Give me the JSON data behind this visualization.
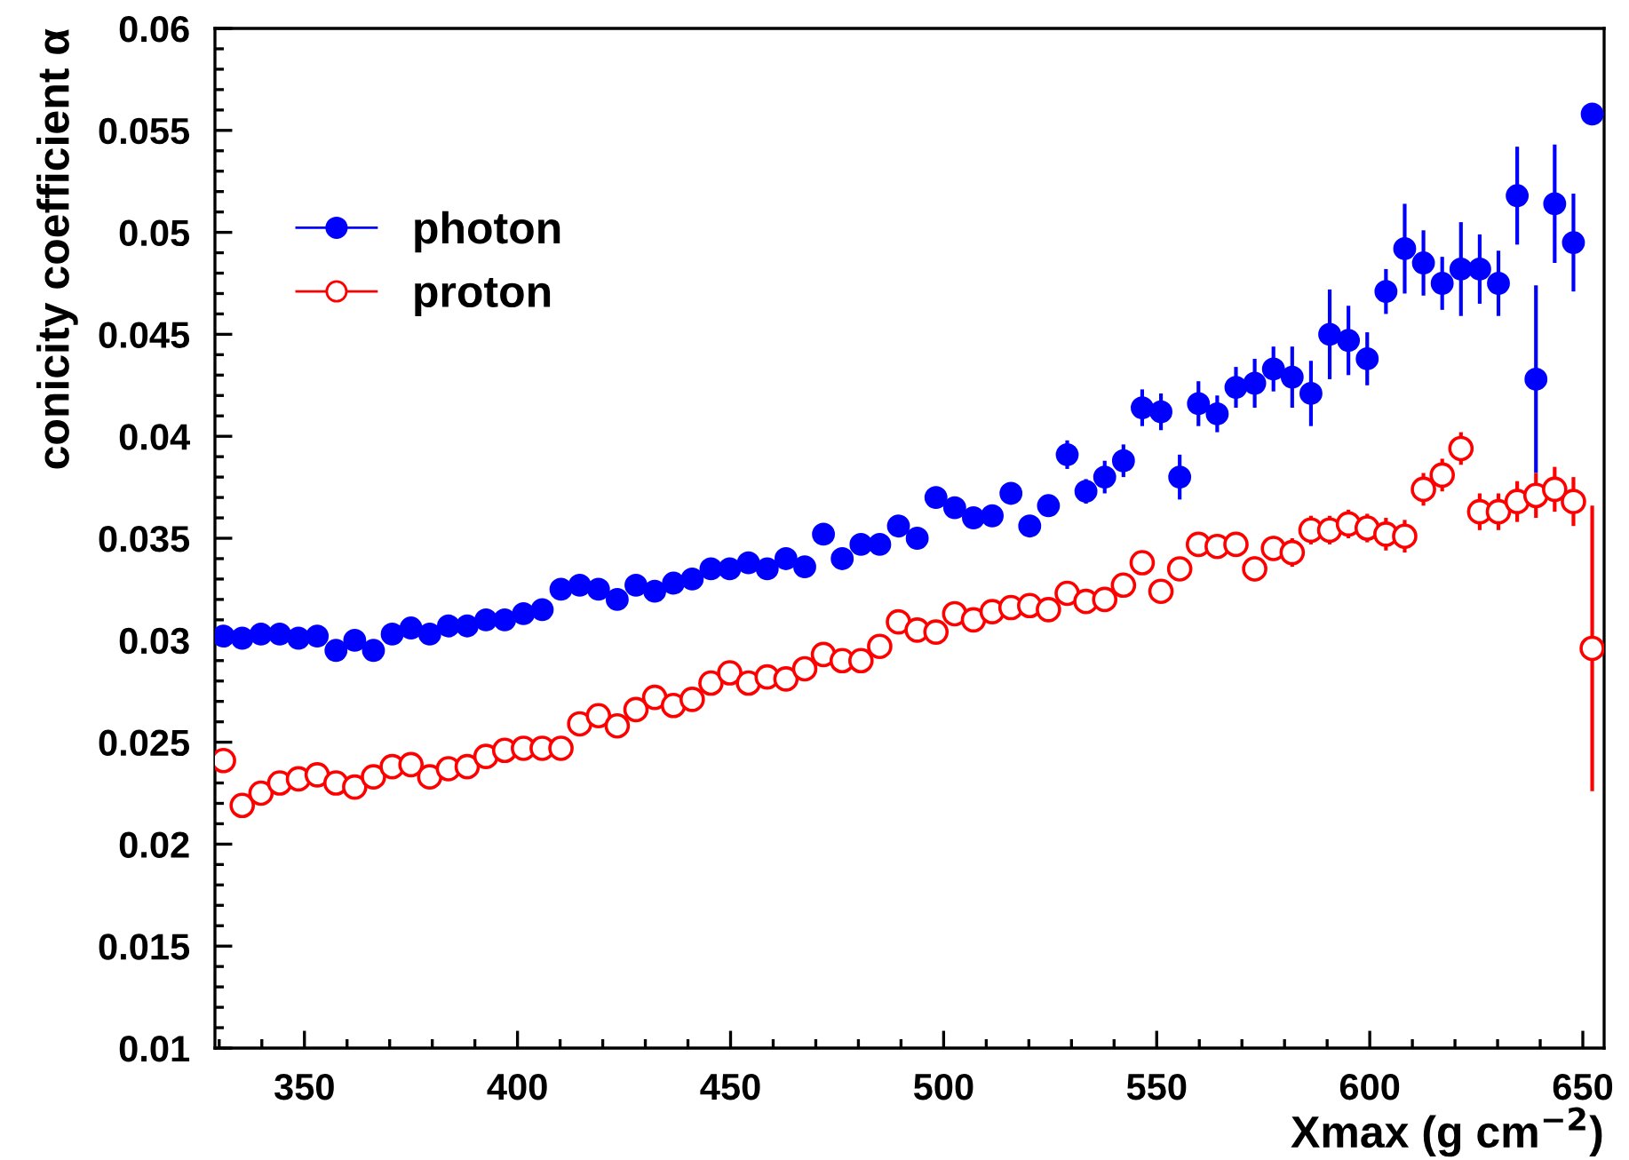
{
  "chart_data": {
    "type": "scatter",
    "xlabel": "Xmax (g cm$^{−2}$)",
    "ylabel": "conicity coefficient α",
    "x": [
      331,
      335.4,
      339.8,
      344.2,
      348.6,
      353,
      357.4,
      361.8,
      366.2,
      370.6,
      375,
      379.4,
      383.8,
      388.2,
      392.6,
      397,
      401.4,
      405.8,
      410.2,
      414.6,
      419,
      423.4,
      427.8,
      432.2,
      436.6,
      441,
      445.4,
      449.8,
      454.2,
      458.6,
      463,
      467.4,
      471.8,
      476.2,
      480.6,
      485,
      489.4,
      493.8,
      498.2,
      502.6,
      507,
      511.4,
      515.8,
      520.2,
      524.6,
      529,
      533.4,
      537.8,
      542.2,
      546.6,
      551,
      555.4,
      559.8,
      564.2,
      568.6,
      573,
      577.4,
      581.8,
      586.2,
      590.6,
      595,
      599.4,
      603.8,
      608.2,
      612.6,
      617,
      621.4,
      625.8,
      630.2,
      634.6,
      639,
      643.4,
      647.8,
      652.2
    ],
    "series": [
      {
        "name": "photon",
        "color": "#0000ff",
        "marker": "circle",
        "values": [
          0.0302,
          0.0301,
          0.0303,
          0.0303,
          0.0301,
          0.0302,
          0.0295,
          0.03,
          0.0295,
          0.0303,
          0.0306,
          0.0303,
          0.0307,
          0.0307,
          0.031,
          0.031,
          0.0313,
          0.0315,
          0.0325,
          0.0327,
          0.0325,
          0.032,
          0.0327,
          0.0324,
          0.0328,
          0.033,
          0.0335,
          0.0335,
          0.0338,
          0.0335,
          0.034,
          0.0336,
          0.0352,
          0.034,
          0.0347,
          0.0347,
          0.0356,
          0.035,
          0.037,
          0.0365,
          0.036,
          0.0361,
          0.0372,
          0.0356,
          0.0366,
          0.0391,
          0.0373,
          0.038,
          0.0388,
          0.0414,
          0.0412,
          0.038,
          0.0416,
          0.0411,
          0.0424,
          0.0426,
          0.0433,
          0.0429,
          0.0421,
          0.045,
          0.0447,
          0.0438,
          0.0471,
          0.0492,
          0.0485,
          0.0475,
          0.0482,
          0.0482,
          0.0475,
          0.0518,
          0.0428,
          0.0514,
          0.0495,
          0.0558
        ],
        "errors": [
          null,
          null,
          null,
          null,
          null,
          null,
          null,
          null,
          null,
          null,
          null,
          null,
          null,
          null,
          null,
          null,
          null,
          null,
          null,
          null,
          null,
          null,
          null,
          null,
          null,
          null,
          null,
          null,
          null,
          null,
          null,
          null,
          null,
          null,
          null,
          null,
          0.0004,
          0.0004,
          0.0004,
          0.0004,
          0.0004,
          0.0005,
          0.0005,
          0.0005,
          0.0005,
          0.0007,
          0.0006,
          0.0008,
          0.0008,
          0.0009,
          0.0009,
          0.0011,
          0.0011,
          0.0009,
          0.001,
          0.0012,
          0.0011,
          0.0015,
          0.0016,
          0.0022,
          0.0017,
          0.0013,
          0.0011,
          0.0022,
          0.0016,
          0.0013,
          0.0023,
          0.0017,
          0.0016,
          0.0024,
          0.0046,
          0.0029,
          0.0024,
          null
        ]
      },
      {
        "name": "proton",
        "color": "#ff0000",
        "marker": "circle",
        "values": [
          0.0241,
          0.0219,
          0.0225,
          0.023,
          0.0232,
          0.0234,
          0.023,
          0.0228,
          0.0233,
          0.0238,
          0.0239,
          0.0233,
          0.0237,
          0.0238,
          0.0243,
          0.0246,
          0.0247,
          0.0247,
          0.0247,
          0.0259,
          0.0263,
          0.0258,
          0.0266,
          0.0272,
          0.0268,
          0.0271,
          0.0279,
          0.0284,
          0.0279,
          0.0282,
          0.0281,
          0.0286,
          0.0293,
          0.029,
          0.029,
          0.0297,
          0.0309,
          0.0305,
          0.0304,
          0.0313,
          0.031,
          0.0314,
          0.0316,
          0.0317,
          0.0315,
          0.0323,
          0.0319,
          0.032,
          0.0327,
          0.0338,
          0.0324,
          0.0335,
          0.0347,
          0.0346,
          0.0347,
          0.0335,
          0.0345,
          0.0343,
          0.0354,
          0.0354,
          0.0357,
          0.0355,
          0.0352,
          0.0351,
          0.0374,
          0.0381,
          0.0394,
          0.0363,
          0.0363,
          0.0368,
          0.0371,
          0.0374,
          0.0368,
          0.0296
        ],
        "errors": [
          null,
          null,
          null,
          null,
          null,
          null,
          null,
          null,
          null,
          null,
          null,
          null,
          null,
          null,
          null,
          null,
          null,
          null,
          null,
          null,
          null,
          null,
          null,
          null,
          null,
          null,
          null,
          null,
          null,
          null,
          null,
          null,
          null,
          null,
          null,
          null,
          null,
          null,
          null,
          null,
          null,
          null,
          null,
          null,
          null,
          0.0004,
          0.0004,
          0.0004,
          0.0005,
          0.0005,
          0.0005,
          0.0005,
          0.0005,
          0.0005,
          0.0006,
          0.0006,
          0.0006,
          0.0007,
          0.0007,
          0.0007,
          0.0007,
          0.0007,
          0.0008,
          0.0008,
          0.0008,
          0.0008,
          0.0008,
          0.0009,
          0.0009,
          0.001,
          0.0011,
          0.0011,
          0.0012,
          0.007
        ]
      }
    ],
    "xlim": [
      329,
      655
    ],
    "xticks": [
      350,
      400,
      450,
      500,
      550,
      600,
      650
    ],
    "ylim": [
      0.01,
      0.06
    ],
    "yticks": [
      0.01,
      0.015,
      0.02,
      0.025,
      0.03,
      0.035,
      0.04,
      0.045,
      0.05,
      0.055,
      0.06
    ],
    "grid": false,
    "legend": "top left"
  }
}
